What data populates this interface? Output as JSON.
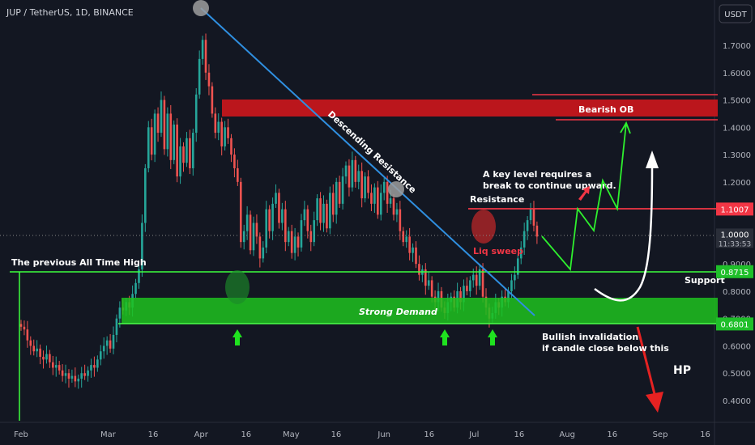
{
  "header": {
    "symbol_line": "JUP / TetherUS, 1D, BINANCE",
    "currency_button": "USDT"
  },
  "price_axis": {
    "ticks": [
      {
        "label": "1.7000",
        "value": 1.7
      },
      {
        "label": "1.6000",
        "value": 1.6
      },
      {
        "label": "1.5000",
        "value": 1.5
      },
      {
        "label": "1.4000",
        "value": 1.4
      },
      {
        "label": "1.3000",
        "value": 1.3
      },
      {
        "label": "1.2000",
        "value": 1.2
      },
      {
        "label": "1.1000",
        "value": 1.1
      },
      {
        "label": "0.9000",
        "value": 0.9
      },
      {
        "label": "0.8000",
        "value": 0.8
      },
      {
        "label": "0.7000",
        "value": 0.7
      },
      {
        "label": "0.6000",
        "value": 0.6
      },
      {
        "label": "0.5000",
        "value": 0.5
      },
      {
        "label": "0.4000",
        "value": 0.4
      }
    ],
    "price_tags": [
      {
        "label": "1.1007",
        "value": 1.1007,
        "color": "#f23645"
      },
      {
        "label": "0.8715",
        "value": 0.8715,
        "color": "#1fbf2a"
      },
      {
        "label": "0.6801",
        "value": 0.6801,
        "color": "#1fbf2a"
      }
    ],
    "last_price": {
      "label": "1.0000",
      "countdown": "11:33:53",
      "value": 1.0
    }
  },
  "time_axis": {
    "labels": [
      {
        "label": "Feb",
        "day": 0
      },
      {
        "label": "Mar",
        "day": 29
      },
      {
        "label": "16",
        "day": 44
      },
      {
        "label": "Apr",
        "day": 60
      },
      {
        "label": "16",
        "day": 75
      },
      {
        "label": "May",
        "day": 90
      },
      {
        "label": "16",
        "day": 105
      },
      {
        "label": "Jun",
        "day": 121
      },
      {
        "label": "16",
        "day": 136
      },
      {
        "label": "Jul",
        "day": 151
      },
      {
        "label": "16",
        "day": 166
      },
      {
        "label": "Aug",
        "day": 182
      },
      {
        "label": "16",
        "day": 197
      },
      {
        "label": "Sep",
        "day": 213
      },
      {
        "label": "16",
        "day": 228
      }
    ]
  },
  "annotations": {
    "descending_resistance": "Descending Resistance",
    "bearish_ob": "Bearish OB",
    "key_level_line1": "A key level requires a",
    "key_level_line2": "break to continue upward.",
    "resistance": "Resistance",
    "liq_sweep": "Liq sweep",
    "previous_ath": "The previous All Time High",
    "support": "Support",
    "strong_demand": "Strong Demand",
    "bullish_invalidation_line1": "Bullish invalidation",
    "bullish_invalidation_line2": "if candle close below this",
    "hp": "HP"
  },
  "colors": {
    "background": "#131722",
    "up_candle": "#26a69a",
    "down_candle": "#ef5350",
    "resistance_red": "#f23645",
    "support_green": "#1fbf2a",
    "trendline_blue": "#2f8fe0"
  },
  "chart_data": {
    "type": "candlestick",
    "title": "JUP / TetherUS, 1D, BINANCE",
    "ylim": [
      0.32,
      1.83
    ],
    "levels": {
      "resistance": 1.1007,
      "support": 0.8715,
      "demand_bottom": 0.6801,
      "demand_top": 0.77,
      "bearish_ob": [
        1.45,
        1.5
      ]
    },
    "closes": [
      0.67,
      0.66,
      0.62,
      0.6,
      0.58,
      0.59,
      0.56,
      0.55,
      0.57,
      0.54,
      0.52,
      0.53,
      0.51,
      0.49,
      0.5,
      0.48,
      0.49,
      0.47,
      0.48,
      0.5,
      0.49,
      0.51,
      0.53,
      0.52,
      0.55,
      0.58,
      0.6,
      0.62,
      0.59,
      0.64,
      0.7,
      0.74,
      0.73,
      0.76,
      0.74,
      0.79,
      0.83,
      0.88,
      1.05,
      1.25,
      1.4,
      1.3,
      1.45,
      1.38,
      1.5,
      1.32,
      1.45,
      1.28,
      1.41,
      1.22,
      1.33,
      1.27,
      1.36,
      1.25,
      1.38,
      1.52,
      1.65,
      1.72,
      1.6,
      1.55,
      1.45,
      1.38,
      1.42,
      1.33,
      1.4,
      1.36,
      1.3,
      1.25,
      1.2,
      0.98,
      1.02,
      1.08,
      0.95,
      1.05,
      1.0,
      0.92,
      0.96,
      1.1,
      1.02,
      1.12,
      1.16,
      1.05,
      1.1,
      0.98,
      1.02,
      0.94,
      1.0,
      0.96,
      1.06,
      1.1,
      1.02,
      0.98,
      1.06,
      1.14,
      1.05,
      1.12,
      1.03,
      1.16,
      1.08,
      1.2,
      1.12,
      1.22,
      1.26,
      1.18,
      1.28,
      1.2,
      1.24,
      1.14,
      1.22,
      1.16,
      1.12,
      1.18,
      1.08,
      1.16,
      1.2,
      1.12,
      1.14,
      1.08,
      1.1,
      1.02,
      0.98,
      1.0,
      0.94,
      0.96,
      0.9,
      0.86,
      0.88,
      0.82,
      0.84,
      0.78,
      0.76,
      0.8,
      0.74,
      0.72,
      0.76,
      0.78,
      0.74,
      0.8,
      0.76,
      0.82,
      0.8,
      0.84,
      0.86,
      0.82,
      0.88,
      0.78,
      0.74,
      0.7,
      0.72,
      0.76,
      0.74,
      0.78,
      0.76,
      0.8,
      0.84,
      0.86,
      0.92,
      0.96,
      1.02,
      1.06,
      1.1,
      1.04,
      1.0
    ]
  }
}
